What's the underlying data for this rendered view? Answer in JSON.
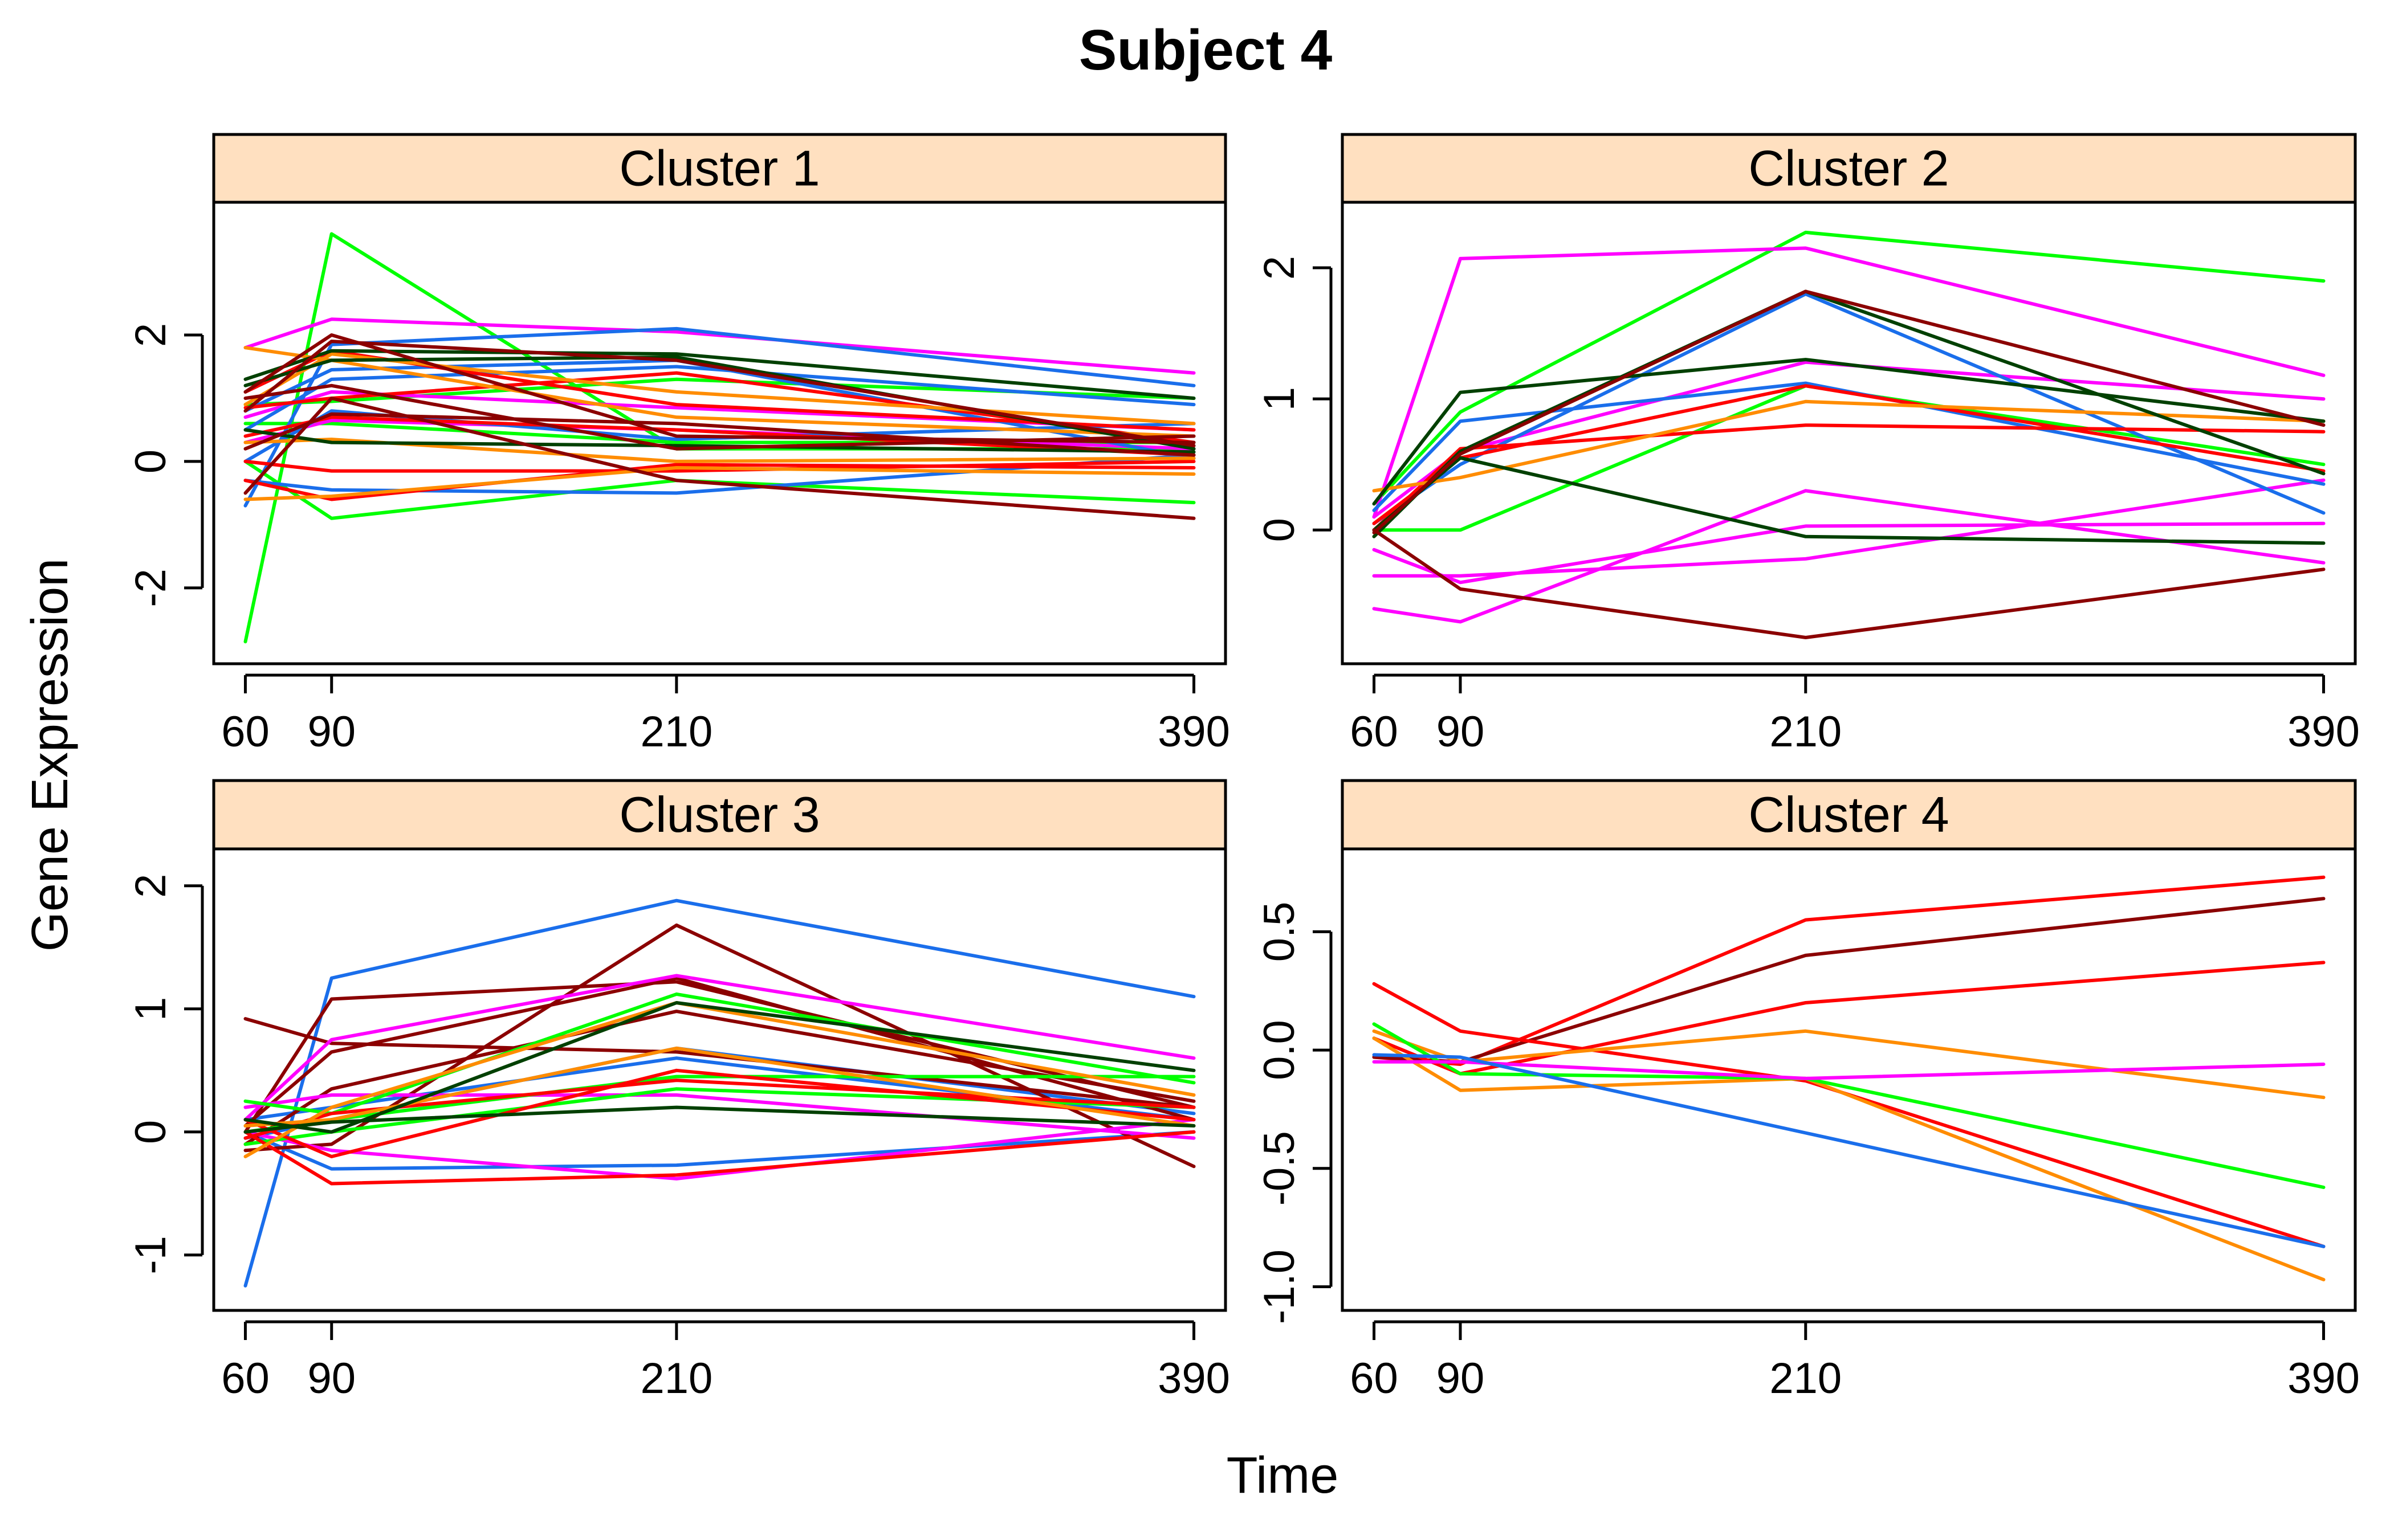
{
  "figure": {
    "title": "Subject 4",
    "xlabel": "Time",
    "ylabel": "Gene Expression"
  },
  "colors": {
    "strip_fill": "#FFE0C0",
    "frame": "#000000",
    "palette": [
      "#FF00FF",
      "#00FF00",
      "#1A6EEB",
      "#FF0000",
      "#FF8C00",
      "#004000",
      "#8B0000"
    ]
  },
  "chart_data": [
    {
      "type": "line",
      "panel": "Cluster 1",
      "x": [
        60,
        90,
        210,
        390
      ],
      "xticks": [
        60,
        90,
        210,
        390
      ],
      "yticks": [
        -2,
        0,
        2
      ],
      "ylim": [
        -3.2,
        4.1
      ],
      "series": [
        {
          "color": "#00FF00",
          "values": [
            -2.85,
            3.6,
            0.2,
            0.2
          ]
        },
        {
          "color": "#00FF00",
          "values": [
            0.0,
            -0.9,
            -0.3,
            -0.65
          ]
        },
        {
          "color": "#00FF00",
          "values": [
            0.9,
            0.95,
            1.3,
            1.0
          ]
        },
        {
          "color": "#00FF00",
          "values": [
            0.6,
            0.6,
            0.3,
            0.3
          ]
        },
        {
          "color": "#FF00FF",
          "values": [
            1.8,
            2.25,
            2.05,
            1.4
          ]
        },
        {
          "color": "#FF00FF",
          "values": [
            0.7,
            1.1,
            0.85,
            0.5
          ]
        },
        {
          "color": "#FF00FF",
          "values": [
            0.3,
            0.65,
            0.5,
            0.2
          ]
        },
        {
          "color": "#1A6EEB",
          "values": [
            -0.7,
            1.85,
            2.1,
            1.2
          ]
        },
        {
          "color": "#1A6EEB",
          "values": [
            0.5,
            1.3,
            1.5,
            0.9
          ]
        },
        {
          "color": "#1A6EEB",
          "values": [
            -0.3,
            -0.45,
            -0.5,
            0.1
          ]
        },
        {
          "color": "#1A6EEB",
          "values": [
            0.0,
            0.8,
            0.35,
            0.6
          ]
        },
        {
          "color": "#1A6EEB",
          "values": [
            0.8,
            1.45,
            1.6,
            0.05
          ]
        },
        {
          "color": "#FF0000",
          "values": [
            0.85,
            1.0,
            1.4,
            0.3
          ]
        },
        {
          "color": "#FF0000",
          "values": [
            0.4,
            0.7,
            0.5,
            0.1
          ]
        },
        {
          "color": "#FF0000",
          "values": [
            0.0,
            -0.15,
            -0.15,
            0.0
          ]
        },
        {
          "color": "#FF0000",
          "values": [
            -0.3,
            -0.6,
            -0.05,
            -0.1
          ]
        },
        {
          "color": "#FF0000",
          "values": [
            1.1,
            1.75,
            0.9,
            0.5
          ]
        },
        {
          "color": "#FF8C00",
          "values": [
            1.8,
            1.6,
            0.7,
            0.4
          ]
        },
        {
          "color": "#FF8C00",
          "values": [
            -0.6,
            -0.55,
            -0.1,
            -0.2
          ]
        },
        {
          "color": "#FF8C00",
          "values": [
            0.9,
            1.7,
            1.1,
            0.6
          ]
        },
        {
          "color": "#FF8C00",
          "values": [
            0.3,
            0.35,
            0.0,
            0.05
          ]
        },
        {
          "color": "#004000",
          "values": [
            1.3,
            1.75,
            1.7,
            1.0
          ]
        },
        {
          "color": "#004000",
          "values": [
            0.5,
            0.3,
            0.25,
            0.15
          ]
        },
        {
          "color": "#004000",
          "values": [
            1.2,
            1.6,
            1.65,
            0.2
          ]
        },
        {
          "color": "#8B0000",
          "values": [
            1.1,
            2.0,
            0.4,
            0.3
          ]
        },
        {
          "color": "#8B0000",
          "values": [
            -0.5,
            1.0,
            -0.3,
            -0.9
          ]
        },
        {
          "color": "#8B0000",
          "values": [
            0.8,
            1.9,
            1.6,
            0.25
          ]
        },
        {
          "color": "#8B0000",
          "values": [
            0.2,
            0.75,
            0.6,
            0.1
          ]
        },
        {
          "color": "#8B0000",
          "values": [
            1.0,
            1.2,
            0.2,
            0.4
          ]
        }
      ]
    },
    {
      "type": "line",
      "panel": "Cluster 2",
      "x": [
        60,
        90,
        210,
        390
      ],
      "xticks": [
        60,
        90,
        210,
        390
      ],
      "yticks": [
        0,
        1,
        2
      ],
      "ylim": [
        -1.02,
        2.5
      ],
      "series": [
        {
          "color": "#00FF00",
          "values": [
            0.0,
            0.0,
            1.1,
            0.5
          ]
        },
        {
          "color": "#00FF00",
          "values": [
            0.2,
            0.9,
            2.27,
            1.9
          ]
        },
        {
          "color": "#FF00FF",
          "values": [
            0.1,
            2.07,
            2.15,
            1.18
          ]
        },
        {
          "color": "#FF00FF",
          "values": [
            -0.6,
            -0.7,
            0.3,
            -0.25
          ]
        },
        {
          "color": "#FF00FF",
          "values": [
            -0.35,
            -0.35,
            -0.22,
            0.38
          ]
        },
        {
          "color": "#FF00FF",
          "values": [
            -0.15,
            -0.4,
            0.03,
            0.05
          ]
        },
        {
          "color": "#FF00FF",
          "values": [
            0.1,
            0.6,
            1.28,
            1.0
          ]
        },
        {
          "color": "#1A6EEB",
          "values": [
            0.15,
            0.83,
            1.12,
            0.35
          ]
        },
        {
          "color": "#1A6EEB",
          "values": [
            0.05,
            0.5,
            1.8,
            0.13
          ]
        },
        {
          "color": "#FF0000",
          "values": [
            0.0,
            0.62,
            0.8,
            0.75
          ]
        },
        {
          "color": "#FF0000",
          "values": [
            0.05,
            0.55,
            1.1,
            0.45
          ]
        },
        {
          "color": "#FF8C00",
          "values": [
            0.3,
            0.4,
            0.98,
            0.83
          ]
        },
        {
          "color": "#004000",
          "values": [
            0.2,
            1.05,
            1.3,
            0.83
          ]
        },
        {
          "color": "#004000",
          "values": [
            0.0,
            0.55,
            -0.05,
            -0.1
          ]
        },
        {
          "color": "#004000",
          "values": [
            -0.05,
            0.6,
            1.82,
            0.43
          ]
        },
        {
          "color": "#8B0000",
          "values": [
            0.0,
            -0.45,
            -0.82,
            -0.3
          ]
        },
        {
          "color": "#8B0000",
          "values": [
            -0.02,
            0.58,
            1.82,
            0.8
          ]
        }
      ]
    },
    {
      "type": "line",
      "panel": "Cluster 3",
      "x": [
        60,
        90,
        210,
        390
      ],
      "xticks": [
        60,
        90,
        210,
        390
      ],
      "yticks": [
        -1,
        0,
        1,
        2
      ],
      "ylim": [
        -1.45,
        2.3
      ],
      "series": [
        {
          "color": "#1A6EEB",
          "values": [
            -1.25,
            1.25,
            1.88,
            1.1
          ]
        },
        {
          "color": "#1A6EEB",
          "values": [
            0.0,
            -0.3,
            -0.27,
            0.0
          ]
        },
        {
          "color": "#1A6EEB",
          "values": [
            0.1,
            0.2,
            0.6,
            0.1
          ]
        },
        {
          "color": "#1A6EEB",
          "values": [
            -0.05,
            0.1,
            0.68,
            0.15
          ]
        },
        {
          "color": "#8B0000",
          "values": [
            0.0,
            1.08,
            1.22,
            0.2
          ]
        },
        {
          "color": "#8B0000",
          "values": [
            0.92,
            0.72,
            0.65,
            0.2
          ]
        },
        {
          "color": "#8B0000",
          "values": [
            -0.15,
            -0.1,
            1.68,
            -0.28
          ]
        },
        {
          "color": "#8B0000",
          "values": [
            -0.1,
            0.35,
            0.98,
            0.25
          ]
        },
        {
          "color": "#8B0000",
          "values": [
            0.05,
            0.65,
            1.25,
            0.1
          ]
        },
        {
          "color": "#FF00FF",
          "values": [
            0.1,
            0.75,
            1.27,
            0.6
          ]
        },
        {
          "color": "#FF00FF",
          "values": [
            0.0,
            -0.15,
            -0.38,
            0.1
          ]
        },
        {
          "color": "#FF00FF",
          "values": [
            0.2,
            0.3,
            0.3,
            -0.05
          ]
        },
        {
          "color": "#00FF00",
          "values": [
            0.25,
            0.15,
            1.12,
            0.4
          ]
        },
        {
          "color": "#00FF00",
          "values": [
            0.0,
            0.1,
            0.45,
            0.45
          ]
        },
        {
          "color": "#00FF00",
          "values": [
            -0.1,
            0.0,
            0.35,
            0.2
          ]
        },
        {
          "color": "#FF0000",
          "values": [
            0.0,
            -0.42,
            -0.35,
            0.0
          ]
        },
        {
          "color": "#FF0000",
          "values": [
            0.1,
            -0.2,
            0.5,
            0.1
          ]
        },
        {
          "color": "#FF0000",
          "values": [
            -0.05,
            0.15,
            0.42,
            0.2
          ]
        },
        {
          "color": "#FF8C00",
          "values": [
            -0.2,
            0.2,
            1.05,
            0.3
          ]
        },
        {
          "color": "#FF8C00",
          "values": [
            0.05,
            0.1,
            0.68,
            0.05
          ]
        },
        {
          "color": "#004000",
          "values": [
            0.0,
            0.08,
            0.2,
            0.05
          ]
        },
        {
          "color": "#004000",
          "values": [
            0.1,
            0.0,
            1.05,
            0.5
          ]
        }
      ]
    },
    {
      "type": "line",
      "panel": "Cluster 4",
      "x": [
        60,
        90,
        210,
        390
      ],
      "xticks": [
        60,
        90,
        210,
        390
      ],
      "xticklabels": [
        "60",
        "90",
        "210",
        "390"
      ],
      "yticks": [
        -1.0,
        -0.5,
        0.0,
        0.5
      ],
      "yticklabels": [
        "-1.0",
        "-0.5",
        "0.0",
        "0.5"
      ],
      "ylim": [
        -1.1,
        0.85
      ],
      "series": [
        {
          "color": "#FF0000",
          "values": [
            -0.03,
            -0.06,
            0.55,
            0.73
          ]
        },
        {
          "color": "#8B0000",
          "values": [
            -0.03,
            -0.05,
            0.4,
            0.64
          ]
        },
        {
          "color": "#FF0000",
          "values": [
            0.05,
            -0.1,
            0.2,
            0.37
          ]
        },
        {
          "color": "#FF0000",
          "values": [
            0.28,
            0.08,
            -0.13,
            -0.83
          ]
        },
        {
          "color": "#FF8C00",
          "values": [
            0.05,
            -0.17,
            -0.12,
            -0.97
          ]
        },
        {
          "color": "#FF8C00",
          "values": [
            0.08,
            -0.05,
            0.08,
            -0.2
          ]
        },
        {
          "color": "#00FF00",
          "values": [
            0.11,
            -0.1,
            -0.12,
            -0.58
          ]
        },
        {
          "color": "#FF00FF",
          "values": [
            -0.05,
            -0.05,
            -0.12,
            -0.06
          ]
        },
        {
          "color": "#1A6EEB",
          "values": [
            -0.02,
            -0.03,
            -0.35,
            -0.83
          ]
        }
      ]
    }
  ]
}
